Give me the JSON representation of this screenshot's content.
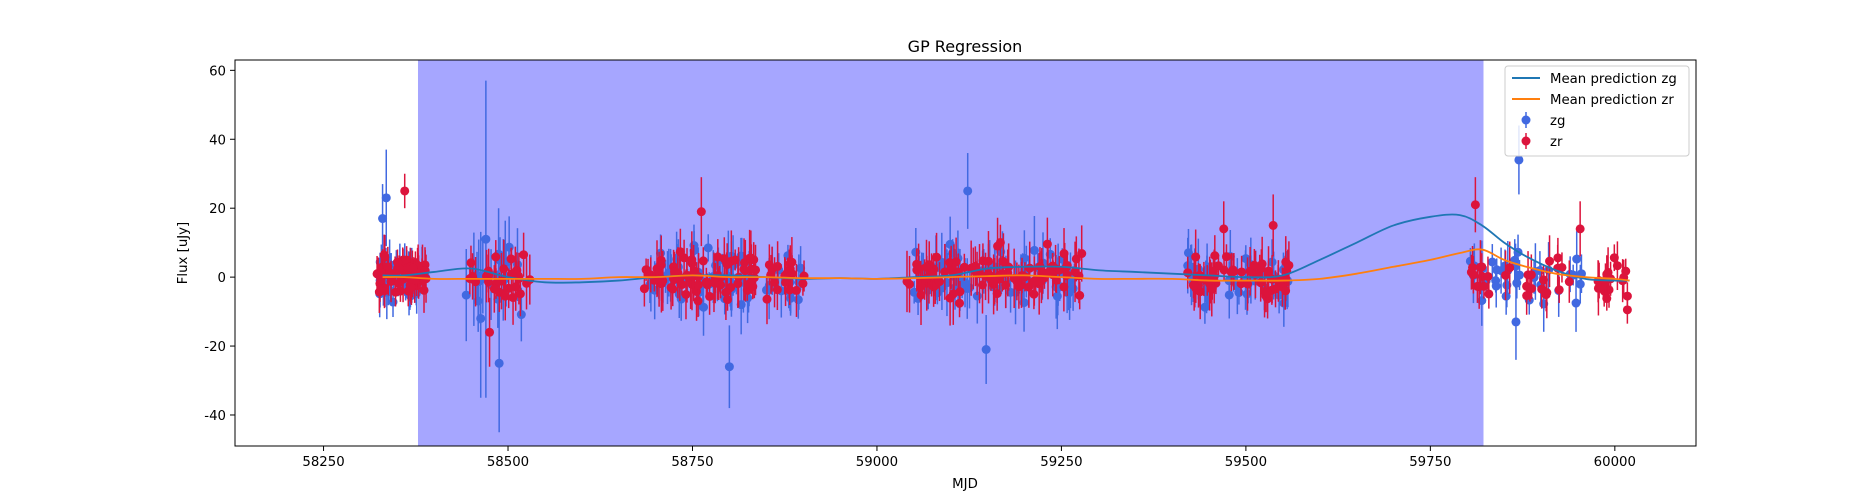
{
  "chart_data": {
    "type": "scatter",
    "title": "GP Regression",
    "xlabel": "MJD",
    "ylabel": "Flux [uJy]",
    "xlim": [
      58130,
      60110
    ],
    "ylim": [
      -49,
      63
    ],
    "xticks": [
      58250,
      58500,
      58750,
      59000,
      59250,
      59500,
      59750,
      60000
    ],
    "yticks": [
      -40,
      -20,
      0,
      20,
      40,
      60
    ],
    "shaded_region": {
      "x_start": 58378,
      "x_end": 59822,
      "color": "#a6a6ff"
    },
    "legend": {
      "position": "top-right",
      "entries": [
        {
          "label": "Mean prediction zg",
          "kind": "line",
          "color": "#1f77b4"
        },
        {
          "label": "Mean prediction zr",
          "kind": "line",
          "color": "#ff7f0e"
        },
        {
          "label": "zg",
          "kind": "errorbar",
          "color": "#4169e1"
        },
        {
          "label": "zr",
          "kind": "errorbar",
          "color": "#dc143c"
        }
      ]
    },
    "lines": [
      {
        "name": "Mean prediction zg",
        "color": "#1f77b4",
        "x": [
          58330,
          58360,
          58400,
          58450,
          58500,
          58550,
          58600,
          58650,
          58700,
          58750,
          58800,
          58850,
          58900,
          58950,
          59000,
          59050,
          59100,
          59150,
          59200,
          59250,
          59300,
          59350,
          59400,
          59450,
          59500,
          59550,
          59600,
          59650,
          59700,
          59750,
          59790,
          59820,
          59850,
          59880,
          59920,
          59960,
          60000,
          60020
        ],
        "y": [
          0.5,
          0.5,
          1.5,
          2.5,
          0,
          -1.5,
          -1.5,
          -1,
          0,
          0.5,
          0.5,
          0,
          -0.5,
          -0.3,
          -0.5,
          0,
          0.5,
          2.5,
          3,
          3,
          2,
          1.5,
          1,
          0.5,
          0,
          0.5,
          5,
          10,
          15,
          17.5,
          18,
          15,
          10,
          6,
          2,
          -0.5,
          -1,
          -1
        ]
      },
      {
        "name": "Mean prediction zr",
        "color": "#ff7f0e",
        "x": [
          58330,
          58360,
          58400,
          58450,
          58500,
          58550,
          58600,
          58650,
          58700,
          58750,
          58800,
          58850,
          58900,
          58950,
          59000,
          59050,
          59100,
          59150,
          59200,
          59250,
          59300,
          59350,
          59400,
          59450,
          59500,
          59550,
          59600,
          59650,
          59700,
          59750,
          59790,
          59820,
          59850,
          59880,
          59920,
          59960,
          60000,
          60020
        ],
        "y": [
          0,
          0,
          -0.5,
          -0.5,
          -0.5,
          -0.5,
          -0.5,
          0,
          0,
          0.5,
          0,
          0,
          -0.3,
          -0.3,
          -0.5,
          -0.3,
          0,
          0.3,
          0.5,
          0,
          -0.5,
          -0.5,
          -0.5,
          -1,
          -1,
          -1,
          -0.5,
          1,
          3,
          5,
          7,
          8,
          5,
          3,
          1,
          0,
          -0.5,
          -1
        ]
      }
    ],
    "series": [
      {
        "name": "zg",
        "color": "#4169e1",
        "clusters": [
          {
            "x": [
              58320,
              58390
            ],
            "n": 45,
            "spread": 5,
            "err": [
              2,
              8
            ]
          },
          {
            "x": [
              58440,
              58520
            ],
            "n": 22,
            "spread": 8,
            "err": [
              4,
              14
            ]
          },
          {
            "x": [
              58690,
              58830
            ],
            "n": 55,
            "spread": 6,
            "err": [
              3,
              9
            ]
          },
          {
            "x": [
              58850,
              58905
            ],
            "n": 14,
            "spread": 6,
            "err": [
              3,
              9
            ]
          },
          {
            "x": [
              59050,
              59270
            ],
            "n": 70,
            "spread": 6,
            "err": [
              3,
              10
            ]
          },
          {
            "x": [
              59420,
              59560
            ],
            "n": 40,
            "spread": 6,
            "err": [
              3,
              9
            ]
          },
          {
            "x": [
              59790,
              59960
            ],
            "n": 35,
            "spread": 6,
            "err": [
              3,
              9
            ]
          }
        ],
        "highlights": [
          {
            "x": 58470,
            "y": 11,
            "err": 46
          },
          {
            "x": 58463,
            "y": -12,
            "err": 23
          },
          {
            "x": 58488,
            "y": -25,
            "err": 20
          },
          {
            "x": 58800,
            "y": -26,
            "err": 12
          },
          {
            "x": 59123,
            "y": 25,
            "err": 11
          },
          {
            "x": 59148,
            "y": -21,
            "err": 10
          },
          {
            "x": 59870,
            "y": 34,
            "err": 10
          },
          {
            "x": 59866,
            "y": -13,
            "err": 11
          },
          {
            "x": 58335,
            "y": 23,
            "err": 14
          },
          {
            "x": 58330,
            "y": 17,
            "err": 10
          }
        ]
      },
      {
        "name": "zr",
        "color": "#dc143c",
        "clusters": [
          {
            "x": [
              58320,
              58390
            ],
            "n": 60,
            "spread": 4,
            "err": [
              3,
              7
            ]
          },
          {
            "x": [
              58440,
              58530
            ],
            "n": 28,
            "spread": 6,
            "err": [
              3,
              9
            ]
          },
          {
            "x": [
              58680,
              58840
            ],
            "n": 75,
            "spread": 6,
            "err": [
              3,
              9
            ]
          },
          {
            "x": [
              58850,
              58905
            ],
            "n": 20,
            "spread": 5,
            "err": [
              3,
              8
            ]
          },
          {
            "x": [
              59040,
              59280
            ],
            "n": 95,
            "spread": 6,
            "err": [
              3,
              9
            ]
          },
          {
            "x": [
              59420,
              59560
            ],
            "n": 55,
            "spread": 5,
            "err": [
              3,
              8
            ]
          },
          {
            "x": [
              59800,
              60020
            ],
            "n": 45,
            "spread": 6,
            "err": [
              3,
              8
            ]
          }
        ],
        "highlights": [
          {
            "x": 58360,
            "y": 25,
            "err": 5
          },
          {
            "x": 58475,
            "y": -16,
            "err": 10
          },
          {
            "x": 58762,
            "y": 19,
            "err": 10
          },
          {
            "x": 59470,
            "y": 14,
            "err": 8
          },
          {
            "x": 59537,
            "y": 15,
            "err": 9
          },
          {
            "x": 59811,
            "y": 21,
            "err": 8
          },
          {
            "x": 59953,
            "y": 14,
            "err": 8
          },
          {
            "x": 60017,
            "y": -9.5,
            "err": 4
          },
          {
            "x": 60017,
            "y": -5.5,
            "err": 4
          }
        ]
      }
    ]
  }
}
